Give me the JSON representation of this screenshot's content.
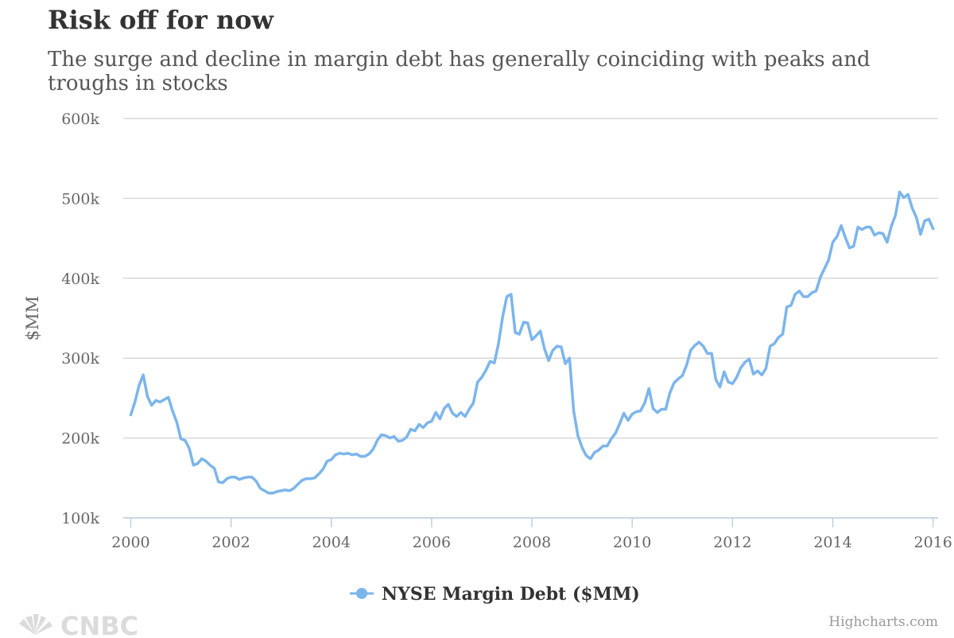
{
  "chart_data": {
    "type": "line",
    "title": "Risk off for now",
    "subtitle": "The surge and decline in margin debt has generally coinciding with peaks and troughs in stocks",
    "ylabel": "$MM",
    "xlabel": "",
    "x_ticks": [
      "2000",
      "2002",
      "2004",
      "2006",
      "2008",
      "2010",
      "2012",
      "2014",
      "2016"
    ],
    "y_ticks": [
      "100k",
      "200k",
      "300k",
      "400k",
      "500k",
      "600k"
    ],
    "xlim": [
      1999.85,
      2016.1
    ],
    "ylim": [
      100000,
      600000
    ],
    "grid": true,
    "legend_position": "bottom-center",
    "series": [
      {
        "name": "NYSE Margin Debt ($MM)",
        "color": "#7cb5ec",
        "start_year": 2000,
        "values": [
          229000,
          245000,
          266000,
          279000,
          252000,
          241000,
          247000,
          245000,
          248000,
          251000,
          234000,
          220000,
          199000,
          197000,
          187000,
          166000,
          168000,
          174000,
          171000,
          166000,
          162000,
          145000,
          144000,
          149000,
          151000,
          151000,
          148000,
          150000,
          151000,
          151000,
          146000,
          137000,
          134000,
          131000,
          131000,
          133000,
          134000,
          135000,
          134000,
          137000,
          142000,
          147000,
          149000,
          149000,
          150000,
          155000,
          161000,
          171000,
          173000,
          179000,
          181000,
          180000,
          181000,
          179000,
          180000,
          177000,
          177000,
          180000,
          186000,
          197000,
          204000,
          203000,
          200000,
          202000,
          196000,
          197000,
          201000,
          211000,
          209000,
          217000,
          213000,
          219000,
          221000,
          232000,
          224000,
          237000,
          242000,
          231000,
          227000,
          232000,
          227000,
          236000,
          244000,
          270000,
          276000,
          285000,
          296000,
          294000,
          318000,
          352000,
          377000,
          380000,
          332000,
          330000,
          345000,
          344000,
          323000,
          328000,
          334000,
          312000,
          297000,
          310000,
          315000,
          314000,
          293000,
          300000,
          234000,
          203000,
          188000,
          178000,
          174000,
          182000,
          185000,
          190000,
          190000,
          199000,
          206000,
          218000,
          231000,
          222000,
          230000,
          233000,
          234000,
          244000,
          262000,
          237000,
          232000,
          236000,
          236000,
          256000,
          269000,
          274000,
          278000,
          291000,
          310000,
          316000,
          320000,
          315000,
          306000,
          306000,
          273000,
          264000,
          283000,
          270000,
          268000,
          276000,
          288000,
          295000,
          299000,
          280000,
          284000,
          279000,
          287000,
          315000,
          318000,
          326000,
          330000,
          364000,
          366000,
          380000,
          384000,
          377000,
          377000,
          382000,
          384000,
          401000,
          412000,
          423000,
          445000,
          452000,
          466000,
          451000,
          438000,
          440000,
          464000,
          461000,
          464000,
          464000,
          454000,
          457000,
          456000,
          445000,
          465000,
          479000,
          508000,
          501000,
          505000,
          488000,
          476000,
          455000,
          472000,
          474000,
          462000
        ]
      }
    ]
  },
  "credits": "Highcharts.com",
  "logo_text": "CNBC"
}
